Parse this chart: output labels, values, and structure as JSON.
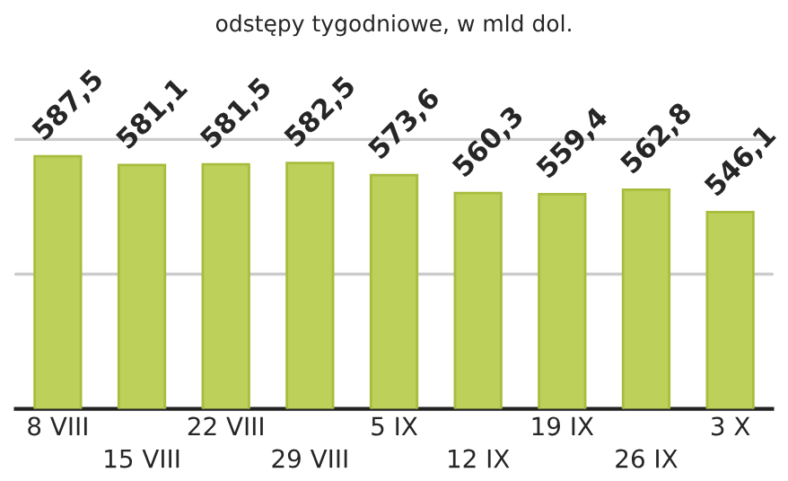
{
  "chart_data": {
    "type": "bar",
    "subtitle": "odstępy tygodniowe, w mld dol.",
    "categories": [
      "8 VIII",
      "15 VIII",
      "22 VIII",
      "29 VIII",
      "5 IX",
      "12 IX",
      "19 IX",
      "26 IX",
      "3 X"
    ],
    "values": [
      587.5,
      581.1,
      581.5,
      582.5,
      573.6,
      560.3,
      559.4,
      562.8,
      546.1
    ],
    "value_labels": [
      "587,5",
      "581,1",
      "581,5",
      "582,5",
      "573,6",
      "560,3",
      "559,4",
      "562,8",
      "546,1"
    ],
    "color": "#bcd05a",
    "ylim": [
      400,
      600
    ],
    "ref_lines": [
      {
        "axis": "y",
        "value": 500,
        "color": "#cccccc"
      },
      {
        "axis": "y",
        "value": 600,
        "color": "#cccccc"
      }
    ],
    "tick_labels": "x"
  }
}
